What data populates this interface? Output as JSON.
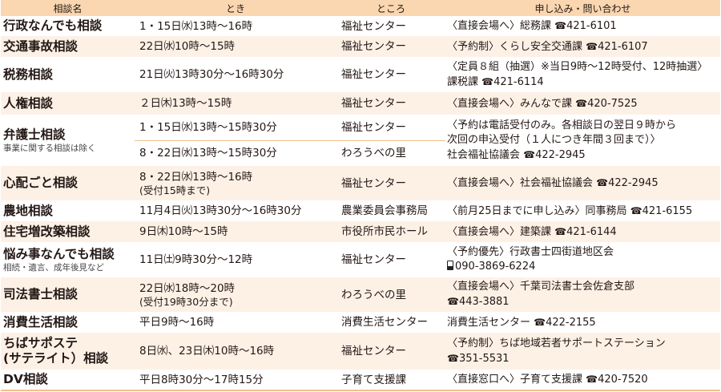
{
  "headers": [
    "相談名",
    "とき",
    "ところ",
    "申し込み・問い合わせ"
  ],
  "colors": {
    "header_bg": "#fad7b0",
    "row_shade": "#fdf1e6",
    "rule": "#f5c08a"
  },
  "rows": [
    {
      "name": "行政なんでも相談",
      "note": "",
      "slots": [
        {
          "time": "1・15日㈬13時〜16時",
          "sub": "",
          "place": "福祉センター"
        }
      ],
      "contact": {
        "lines": [
          "〈直接会場へ〉総務課"
        ],
        "phone_icon": "phone",
        "phone": "421-6101"
      }
    },
    {
      "name": "交通事故相談",
      "note": "",
      "slots": [
        {
          "time": "22日㈬10時〜15時",
          "sub": "",
          "place": "福祉センター"
        }
      ],
      "contact": {
        "lines": [
          "〈予約制〉くらし安全交通課"
        ],
        "phone_icon": "phone",
        "phone": "421-6107"
      }
    },
    {
      "name": "税務相談",
      "note": "",
      "slots": [
        {
          "time": "21日㈫13時30分〜16時30分",
          "sub": "",
          "place": "福祉センター"
        }
      ],
      "contact": {
        "lines": [
          "〈定員８組（抽選）※当日9時〜12時受付、12時抽選〉",
          "課税課"
        ],
        "phone_icon": "phone",
        "phone": "421-6114"
      }
    },
    {
      "name": "人権相談",
      "note": "",
      "slots": [
        {
          "time": " ２日㈭13時〜15時",
          "sub": "",
          "place": "福祉センター"
        }
      ],
      "contact": {
        "lines": [
          "〈直接会場へ〉みんなで課"
        ],
        "phone_icon": "phone",
        "phone": "420-7525"
      }
    },
    {
      "name": "弁護士相談",
      "note": "事業に関する相談は除く",
      "slots": [
        {
          "time": "1・15日㈬13時〜15時30分",
          "sub": "",
          "place": "福祉センター"
        },
        {
          "time": "8・22日㈬13時〜15時30分",
          "sub": "",
          "place": "わろうべの里"
        }
      ],
      "contact": {
        "lines": [
          "〈予約は電話受付のみ。各相談日の翌日９時から",
          "次回の申込受付（１人につき年間３回まで）〉",
          "社会福祉協議会"
        ],
        "phone_icon": "phone",
        "phone": "422-2945"
      }
    },
    {
      "name": "心配ごと相談",
      "note": "",
      "slots": [
        {
          "time": "8・22日㈬13時〜16時",
          "sub": "(受付15時まで)",
          "place": "福祉センター"
        }
      ],
      "contact": {
        "lines": [
          "〈直接会場へ〉社会福祉協議会"
        ],
        "phone_icon": "phone",
        "phone": "422-2945"
      }
    },
    {
      "name": "農地相談",
      "note": "",
      "slots": [
        {
          "time": "11月4日㈫13時30分〜16時30分",
          "sub": "",
          "place": "農業委員会事務局"
        }
      ],
      "contact": {
        "lines": [
          "〈前月25日までに申し込み〉同事務局"
        ],
        "phone_icon": "phone",
        "phone": "421-6155"
      }
    },
    {
      "name": "住宅増改築相談",
      "note": "",
      "slots": [
        {
          "time": "9日㈭10時〜15時",
          "sub": "",
          "place": "市役所市民ホール"
        }
      ],
      "contact": {
        "lines": [
          "〈直接会場へ〉建築課"
        ],
        "phone_icon": "phone",
        "phone": "421-6144"
      }
    },
    {
      "name": "悩み事なんでも相談",
      "note": "相続・遺言、成年後見など",
      "slots": [
        {
          "time": "11日㈯9時30分〜12時",
          "sub": "",
          "place": "福祉センター"
        }
      ],
      "contact": {
        "lines": [
          "〈予約優先〉行政書士四街道地区会",
          ""
        ],
        "phone_icon": "mobile-phone",
        "phone": "090-3869-6224"
      }
    },
    {
      "name": "司法書士相談",
      "note": "",
      "slots": [
        {
          "time": "22日㈬18時〜20時",
          "sub": "(受付19時30分まで)",
          "place": "わろうべの里"
        }
      ],
      "contact": {
        "lines": [
          "〈直接会場へ〉千葉司法書士会佐倉支部",
          ""
        ],
        "phone_icon": "phone",
        "phone": "443-3881"
      }
    },
    {
      "name": "消費生活相談",
      "note": "",
      "slots": [
        {
          "time": "平日9時〜16時",
          "sub": "",
          "place": "消費生活センター"
        }
      ],
      "contact": {
        "lines": [
          "消費生活センター"
        ],
        "phone_icon": "phone",
        "phone": "422-2155"
      }
    },
    {
      "name": "ちばサポステ\n(サテライト）相談",
      "note": "",
      "slots": [
        {
          "time": "8日㈬、23日㈭10時〜16時",
          "sub": "",
          "place": "福祉センター"
        }
      ],
      "contact": {
        "lines": [
          "〈予約制〉ちば地域若者サポートステーション",
          ""
        ],
        "phone_icon": "phone",
        "phone": "351-5531"
      }
    },
    {
      "name": "DV相談",
      "note": "",
      "slots": [
        {
          "time": "平日8時30分〜17時15分",
          "sub": "",
          "place": "子育て支援課"
        }
      ],
      "contact": {
        "lines": [
          "〈直接窓口へ〉子育て支援課"
        ],
        "phone_icon": "phone",
        "phone": "420-7520"
      }
    }
  ]
}
